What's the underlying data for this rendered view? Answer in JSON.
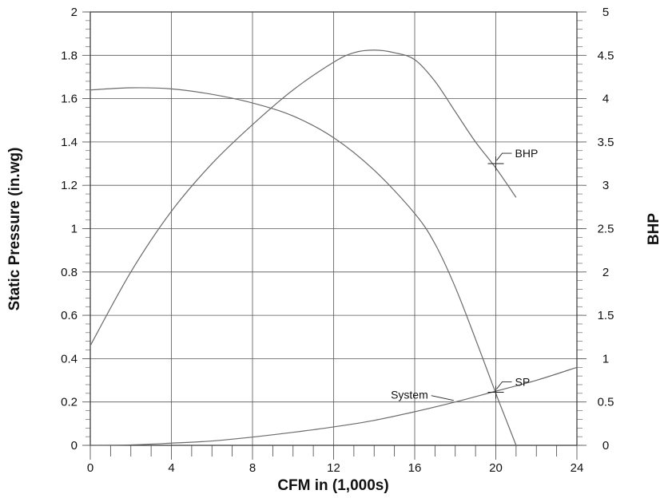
{
  "chart_data": {
    "type": "line",
    "xlabel": "CFM in (1,000s)",
    "ylabel": "Static Pressure  (in.wg)",
    "y2label": "BHP",
    "xlim": [
      0,
      24
    ],
    "ylim": [
      0,
      2
    ],
    "y2lim": [
      0,
      5
    ],
    "xticks": [
      0,
      4,
      8,
      12,
      16,
      20,
      24
    ],
    "yticks": [
      0,
      0.2,
      0.4,
      0.6,
      0.8,
      1,
      1.2,
      1.4,
      1.6,
      1.8,
      2
    ],
    "y2ticks": [
      0,
      0.5,
      1,
      1.5,
      2,
      2.5,
      3,
      3.5,
      4,
      4.5,
      5
    ],
    "grid": true,
    "series": [
      {
        "axis": "left",
        "x": [
          0,
          2,
          4,
          6,
          8,
          10,
          12,
          14,
          16,
          17,
          18,
          19,
          20,
          20.5,
          21
        ],
        "values": [
          1.64,
          1.65,
          1.645,
          1.62,
          1.58,
          1.52,
          1.42,
          1.27,
          1.07,
          0.93,
          0.73,
          0.49,
          0.24,
          0.12,
          0.0
        ]
      },
      {
        "axis": "right",
        "x": [
          0,
          2,
          4,
          6,
          8,
          10,
          12,
          13,
          14,
          15,
          16,
          17,
          18,
          19,
          20,
          21
        ],
        "values": [
          1.15,
          2.0,
          2.7,
          3.25,
          3.7,
          4.1,
          4.42,
          4.53,
          4.56,
          4.53,
          4.45,
          4.2,
          3.85,
          3.5,
          3.2,
          2.86
        ]
      },
      {
        "name": "System",
        "axis": "left",
        "x": [
          0,
          2,
          4,
          6,
          8,
          10,
          12,
          14,
          16,
          18,
          20,
          22,
          24
        ],
        "values": [
          0.0,
          0.002,
          0.01,
          0.02,
          0.038,
          0.06,
          0.085,
          0.115,
          0.155,
          0.2,
          0.25,
          0.3,
          0.36
        ]
      }
    ],
    "annotations": [
      {
        "text": "BHP",
        "x": 20,
        "y": 1.3
      },
      {
        "text": "SP",
        "x": 20,
        "y": 0.245
      },
      {
        "text": "System",
        "x": 18,
        "y": 0.2
      }
    ]
  }
}
